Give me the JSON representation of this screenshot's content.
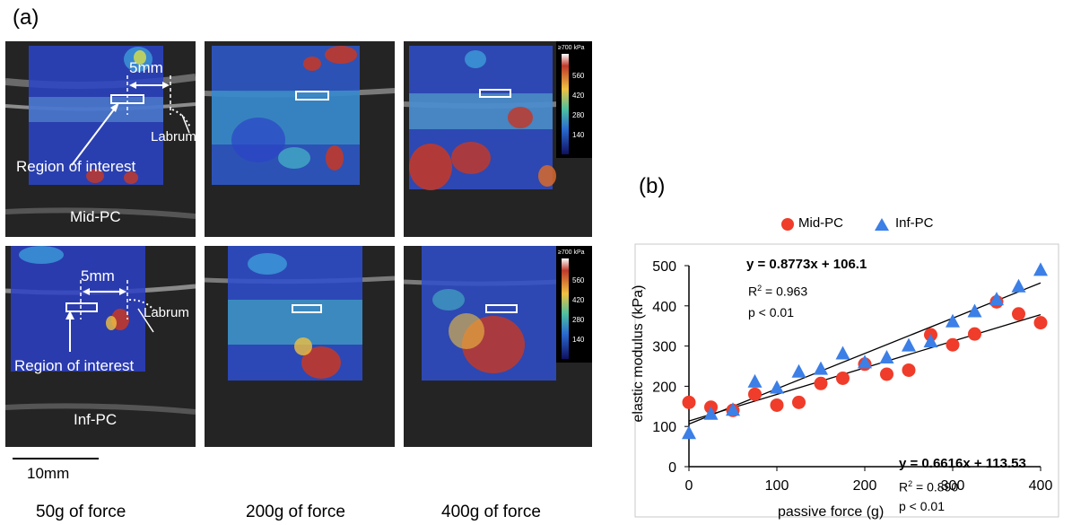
{
  "panel_a": {
    "label": "(a)",
    "rows": [
      {
        "name": "Mid-PC",
        "distance": "5mm",
        "labrum": "Labrum",
        "roi": "Region of interest"
      },
      {
        "name": "Inf-PC",
        "distance": "5mm",
        "labrum": "Labrum",
        "roi": "Region of interest"
      }
    ],
    "colorbar": {
      "unit": "≥700 kPa",
      "ticks": [
        "560",
        "420",
        "280",
        "140"
      ]
    },
    "scale_bar": "10mm",
    "columns": [
      "50g of force",
      "200g of force",
      "400g of force"
    ]
  },
  "panel_b": {
    "label": "(b)"
  },
  "chart_data": {
    "type": "scatter",
    "xlabel": "passive force (g)",
    "ylabel": "elastic modulus (kPa)",
    "xlim": [
      0,
      400
    ],
    "ylim": [
      0,
      500
    ],
    "xticks": [
      0,
      100,
      200,
      300,
      400
    ],
    "yticks": [
      0,
      100,
      200,
      300,
      400,
      500
    ],
    "legend_position": "top",
    "series": [
      {
        "name": "Mid-PC",
        "marker": "circle",
        "color": "#f03c2a",
        "x": [
          0,
          25,
          50,
          75,
          100,
          125,
          150,
          175,
          200,
          225,
          250,
          275,
          300,
          325,
          350,
          375,
          400
        ],
        "y": [
          160,
          148,
          140,
          180,
          153,
          160,
          207,
          220,
          255,
          230,
          240,
          328,
          303,
          330,
          410,
          380,
          358
        ],
        "fit": {
          "equation": "y = 0.6616x + 113.53",
          "r2_prefix": "R",
          "r2_sup": "2",
          "r2_value": " = 0.890",
          "p": "p < 0.01",
          "slope": 0.6616,
          "intercept": 113.53
        }
      },
      {
        "name": "Inf-PC",
        "marker": "triangle",
        "color": "#3c7fe6",
        "x": [
          0,
          25,
          50,
          75,
          100,
          125,
          150,
          175,
          200,
          225,
          250,
          275,
          300,
          325,
          350,
          375,
          400
        ],
        "y": [
          82,
          130,
          140,
          210,
          195,
          235,
          242,
          280,
          258,
          270,
          300,
          310,
          360,
          385,
          415,
          447,
          488
        ],
        "fit": {
          "equation": "y = 0.8773x + 106.1",
          "r2_prefix": "R",
          "r2_sup": "2",
          "r2_value": " = 0.963",
          "p": "p < 0.01",
          "slope": 0.8773,
          "intercept": 106.1
        }
      }
    ]
  }
}
